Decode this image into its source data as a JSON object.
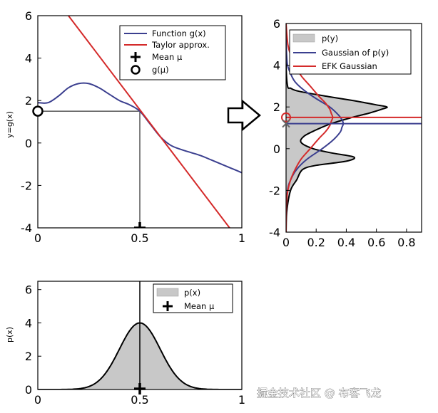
{
  "watermark": "掘金技术社区 @ 布客飞龙",
  "arrow_icon": "right-arrow-icon",
  "colors": {
    "function": "#3b3f8f",
    "taylor": "#d42a2a",
    "gray_fill": "#c8c8c8",
    "black": "#000000"
  },
  "chart_data": [
    {
      "id": "function",
      "type": "line",
      "xlabel": "",
      "ylabel": "y=g(x)",
      "xlim": [
        0,
        1
      ],
      "ylim": [
        -4,
        6
      ],
      "xticks": [
        "0",
        "0.5",
        "1"
      ],
      "yticks": [
        "-4",
        "-2",
        "0",
        "2",
        "4",
        "6"
      ],
      "legend_position": "top-right",
      "mu": 0.5,
      "g_mu": 1.5,
      "series": [
        {
          "name": "Function g(x)",
          "x": [
            0,
            0.05,
            0.1,
            0.15,
            0.2,
            0.25,
            0.3,
            0.35,
            0.4,
            0.45,
            0.5,
            0.55,
            0.6,
            0.65,
            0.7,
            0.75,
            0.8,
            0.85,
            0.9,
            0.95,
            1.0
          ],
          "y": [
            1.9,
            1.9,
            2.2,
            2.6,
            2.8,
            2.8,
            2.6,
            2.3,
            2.0,
            1.8,
            1.5,
            0.9,
            0.3,
            -0.1,
            -0.3,
            -0.45,
            -0.6,
            -0.8,
            -1.0,
            -1.2,
            -1.4
          ]
        },
        {
          "name": "Taylor approx.",
          "x": [
            0.15,
            0.94
          ],
          "y": [
            6.0,
            -4.0
          ]
        },
        {
          "name": "Mean μ",
          "x": [
            0.5
          ],
          "y": [
            -4
          ]
        },
        {
          "name": "g(μ)",
          "x": [
            0
          ],
          "y": [
            1.5
          ]
        }
      ]
    },
    {
      "id": "output",
      "type": "area",
      "orientation": "horizontal",
      "xlim": [
        0,
        0.9
      ],
      "ylim": [
        -4,
        6
      ],
      "xticks": [
        "0",
        "0.2",
        "0.4",
        "0.6",
        "0.8"
      ],
      "yticks": [
        "-4",
        "-2",
        "0",
        "2",
        "4",
        "6"
      ],
      "legend_position": "top-right",
      "ekf_mean": 1.5,
      "gauss_mean": 1.2,
      "series": [
        {
          "name": "p(y)",
          "y": [
            -4,
            -3.0,
            -2.0,
            -1.5,
            -1.0,
            -0.8,
            -0.6,
            -0.4,
            -0.2,
            0.0,
            0.3,
            0.6,
            0.9,
            1.2,
            1.5,
            1.7,
            1.9,
            2.0,
            2.1,
            2.3,
            2.5,
            2.7,
            2.8,
            2.9,
            3.0,
            4.0,
            6.0
          ],
          "p": [
            0,
            0.005,
            0.03,
            0.07,
            0.11,
            0.2,
            0.4,
            0.45,
            0.3,
            0.18,
            0.1,
            0.12,
            0.2,
            0.3,
            0.44,
            0.55,
            0.64,
            0.67,
            0.6,
            0.45,
            0.28,
            0.12,
            0.06,
            0.03,
            0.01,
            0,
            0
          ]
        },
        {
          "name": "Gaussian of p(y)",
          "y": [
            -4,
            -3.0,
            -2.0,
            -1.5,
            -1.0,
            -0.5,
            0.0,
            0.4,
            0.8,
            1.0,
            1.2,
            1.4,
            1.6,
            2.0,
            2.4,
            2.8,
            3.2,
            3.6,
            4.0,
            4.5,
            5.0,
            6.0
          ],
          "p": [
            0,
            0.001,
            0.01,
            0.03,
            0.07,
            0.14,
            0.24,
            0.31,
            0.36,
            0.37,
            0.38,
            0.37,
            0.35,
            0.29,
            0.2,
            0.12,
            0.06,
            0.03,
            0.01,
            0.004,
            0.001,
            0
          ]
        },
        {
          "name": "EFK Gaussian",
          "y": [
            -4,
            -3.0,
            -2.5,
            -2.0,
            -1.5,
            -1.0,
            -0.5,
            0.0,
            0.5,
            0.8,
            1.1,
            1.3,
            1.5,
            1.7,
            1.9,
            2.2,
            2.5,
            3.0,
            3.5,
            4.0,
            4.5,
            5.0,
            6.0
          ],
          "p": [
            0,
            0.001,
            0.004,
            0.012,
            0.03,
            0.06,
            0.1,
            0.16,
            0.22,
            0.26,
            0.29,
            0.3,
            0.31,
            0.3,
            0.29,
            0.26,
            0.22,
            0.16,
            0.1,
            0.06,
            0.03,
            0.012,
            0
          ]
        }
      ]
    },
    {
      "id": "input",
      "type": "area",
      "xlabel": "",
      "ylabel": "p(x)",
      "xlim": [
        0,
        1
      ],
      "ylim": [
        0,
        6.5
      ],
      "xticks": [
        "0",
        "0.5",
        "1"
      ],
      "yticks": [
        "0",
        "2",
        "4",
        "6"
      ],
      "legend_position": "top-right",
      "mu": 0.5,
      "series": [
        {
          "name": "p(x)",
          "mean": 0.5,
          "sd": 0.1,
          "peak": 4.0
        },
        {
          "name": "Mean μ",
          "x": [
            0.5
          ],
          "y": [
            0
          ]
        }
      ]
    }
  ]
}
